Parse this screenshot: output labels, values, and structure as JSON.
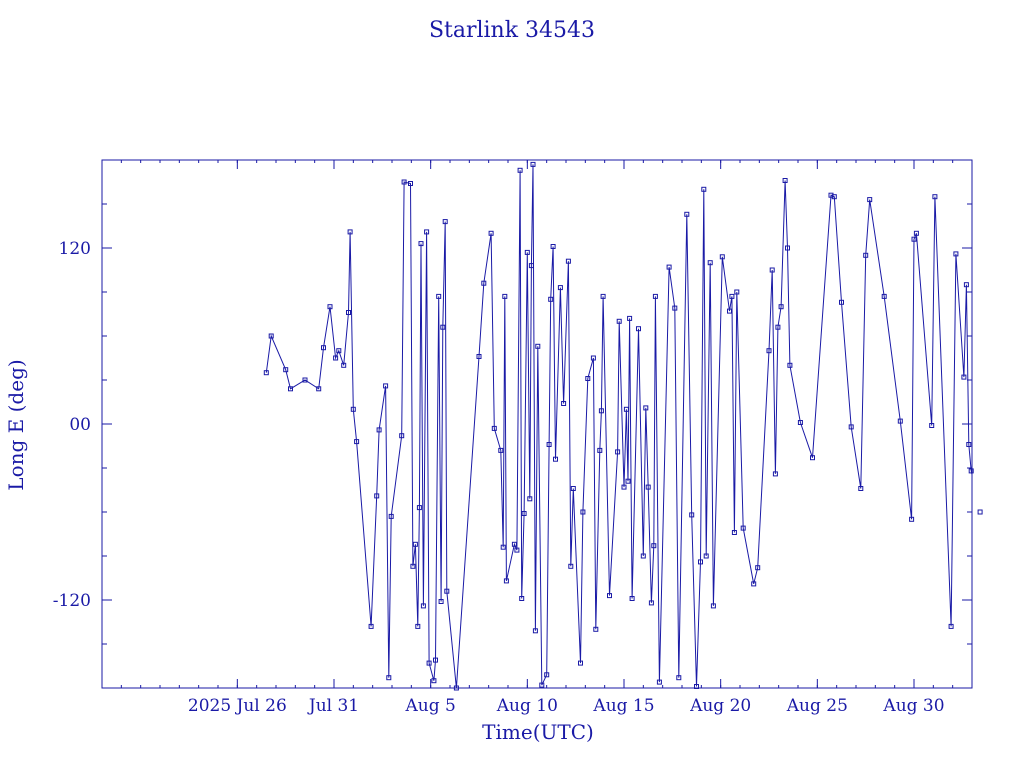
{
  "chart_data": {
    "type": "scatter",
    "title": "Starlink 34543",
    "xlabel": "Time(UTC)",
    "ylabel": "Long E (deg)",
    "x_tick_labels": [
      "2025 Jul 26",
      "Jul 31",
      "Aug  5",
      "Aug 10",
      "Aug 15",
      "Aug 20",
      "Aug 25",
      "Aug 30"
    ],
    "y_tick_labels": [
      "120",
      "00",
      "-120"
    ],
    "x_tick_dates": [
      "2025-07-26",
      "2025-07-31",
      "2025-08-05",
      "2025-08-10",
      "2025-08-15",
      "2025-08-20",
      "2025-08-25",
      "2025-08-30"
    ],
    "y_tick_values": [
      120,
      0,
      -120
    ],
    "xlim": [
      "2025-07-19",
      "2025-09-02"
    ],
    "ylim": [
      -180,
      180
    ],
    "grid": false,
    "color": "#1a1aa6",
    "series": [
      {
        "points": [
          [
            "2025-07-27T12:00",
            35
          ],
          [
            "2025-07-27T18:00",
            60
          ],
          [
            "2025-07-28T12:00",
            37
          ],
          [
            "2025-07-28T18:00",
            24
          ],
          [
            "2025-07-29T12:00",
            30
          ],
          [
            "2025-07-30T05:00",
            24
          ],
          [
            "2025-07-30T11:00",
            52
          ],
          [
            "2025-07-30T19:00",
            80
          ],
          [
            "2025-07-31T02:00",
            45
          ],
          [
            "2025-07-31T06:00",
            50
          ],
          [
            "2025-07-31T12:00",
            40
          ],
          [
            "2025-07-31T18:00",
            76
          ],
          [
            "2025-07-31T20:00",
            131
          ],
          [
            "2025-08-01T00:00",
            10
          ],
          [
            "2025-08-01T04:00",
            -12
          ],
          [
            "2025-08-01T22:00",
            -138
          ],
          [
            "2025-08-02T05:00",
            -49
          ],
          [
            "2025-08-02T08:00",
            -4
          ],
          [
            "2025-08-02T16:00",
            26
          ],
          [
            "2025-08-02T20:00",
            -173
          ],
          [
            "2025-08-02T23:00",
            -63
          ],
          [
            "2025-08-03T12:00",
            -8
          ],
          [
            "2025-08-03T15:00",
            165
          ],
          [
            "2025-08-03T23:00",
            164
          ],
          [
            "2025-08-04T02:00",
            -97
          ],
          [
            "2025-08-04T05:00",
            -82
          ],
          [
            "2025-08-04T08:00",
            -138
          ],
          [
            "2025-08-04T10:00",
            -57
          ],
          [
            "2025-08-04T12:00",
            123
          ],
          [
            "2025-08-04T15:00",
            -124
          ],
          [
            "2025-08-04T19:00",
            131
          ],
          [
            "2025-08-04T22:00",
            -163
          ],
          [
            "2025-08-05T04:00",
            -175
          ],
          [
            "2025-08-05T06:00",
            -161
          ],
          [
            "2025-08-05T10:00",
            87
          ],
          [
            "2025-08-05T13:00",
            -121
          ],
          [
            "2025-08-05T15:00",
            66
          ],
          [
            "2025-08-05T18:00",
            138
          ],
          [
            "2025-08-05T20:00",
            -114
          ],
          [
            "2025-08-06T08:00",
            -180
          ],
          [
            "2025-08-07T12:00",
            46
          ],
          [
            "2025-08-07T18:00",
            96
          ],
          [
            "2025-08-08T03:00",
            130
          ],
          [
            "2025-08-08T07:00",
            -3
          ],
          [
            "2025-08-08T15:00",
            -18
          ],
          [
            "2025-08-08T18:00",
            -84
          ],
          [
            "2025-08-08T20:00",
            87
          ],
          [
            "2025-08-08T22:00",
            -107
          ],
          [
            "2025-08-09T08:00",
            -82
          ],
          [
            "2025-08-09T11:00",
            -86
          ],
          [
            "2025-08-09T15:00",
            173
          ],
          [
            "2025-08-09T17:00",
            -119
          ],
          [
            "2025-08-09T20:00",
            -61
          ],
          [
            "2025-08-10T00:00",
            117
          ],
          [
            "2025-08-10T03:00",
            -51
          ],
          [
            "2025-08-10T05:00",
            108
          ],
          [
            "2025-08-10T07:00",
            177
          ],
          [
            "2025-08-10T10:00",
            -141
          ],
          [
            "2025-08-10T13:00",
            53
          ],
          [
            "2025-08-10T18:00",
            -178
          ],
          [
            "2025-08-11T00:00",
            -171
          ],
          [
            "2025-08-11T03:00",
            -14
          ],
          [
            "2025-08-11T05:00",
            85
          ],
          [
            "2025-08-11T08:00",
            121
          ],
          [
            "2025-08-11T11:00",
            -24
          ],
          [
            "2025-08-11T17:00",
            93
          ],
          [
            "2025-08-11T21:00",
            14
          ],
          [
            "2025-08-12T03:00",
            111
          ],
          [
            "2025-08-12T06:00",
            -97
          ],
          [
            "2025-08-12T09:00",
            -44
          ],
          [
            "2025-08-12T18:00",
            -163
          ],
          [
            "2025-08-12T21:00",
            -60
          ],
          [
            "2025-08-13T03:00",
            31
          ],
          [
            "2025-08-13T10:00",
            45
          ],
          [
            "2025-08-13T13:00",
            -140
          ],
          [
            "2025-08-13T18:00",
            -18
          ],
          [
            "2025-08-13T20:00",
            9
          ],
          [
            "2025-08-13T22:00",
            87
          ],
          [
            "2025-08-14T06:00",
            -117
          ],
          [
            "2025-08-14T16:00",
            -19
          ],
          [
            "2025-08-14T18:00",
            70
          ],
          [
            "2025-08-15T00:00",
            -43
          ],
          [
            "2025-08-15T03:00",
            10
          ],
          [
            "2025-08-15T05:00",
            -39
          ],
          [
            "2025-08-15T07:00",
            72
          ],
          [
            "2025-08-15T10:00",
            -119
          ],
          [
            "2025-08-15T18:00",
            65
          ],
          [
            "2025-08-16T00:00",
            -90
          ],
          [
            "2025-08-16T03:00",
            11
          ],
          [
            "2025-08-16T06:00",
            -43
          ],
          [
            "2025-08-16T10:00",
            -122
          ],
          [
            "2025-08-16T13:00",
            -83
          ],
          [
            "2025-08-16T15:00",
            87
          ],
          [
            "2025-08-16T20:00",
            -176
          ],
          [
            "2025-08-17T08:00",
            107
          ],
          [
            "2025-08-17T15:00",
            79
          ],
          [
            "2025-08-17T20:00",
            -173
          ],
          [
            "2025-08-18T06:00",
            143
          ],
          [
            "2025-08-18T12:00",
            -62
          ],
          [
            "2025-08-18T18:00",
            -179
          ],
          [
            "2025-08-18T23:00",
            -94
          ],
          [
            "2025-08-19T03:00",
            160
          ],
          [
            "2025-08-19T06:00",
            -90
          ],
          [
            "2025-08-19T11:00",
            110
          ],
          [
            "2025-08-19T15:00",
            -124
          ],
          [
            "2025-08-20T02:00",
            114
          ],
          [
            "2025-08-20T11:00",
            77
          ],
          [
            "2025-08-20T14:00",
            87
          ],
          [
            "2025-08-20T17:00",
            -74
          ],
          [
            "2025-08-20T20:00",
            90
          ],
          [
            "2025-08-21T04:00",
            -71
          ],
          [
            "2025-08-21T17:00",
            -109
          ],
          [
            "2025-08-21T22:00",
            -98
          ],
          [
            "2025-08-22T12:00",
            50
          ],
          [
            "2025-08-22T16:00",
            105
          ],
          [
            "2025-08-22T20:00",
            -34
          ],
          [
            "2025-08-22T23:00",
            66
          ],
          [
            "2025-08-23T03:00",
            80
          ],
          [
            "2025-08-23T08:00",
            166
          ],
          [
            "2025-08-23T11:00",
            120
          ],
          [
            "2025-08-23T14:00",
            40
          ],
          [
            "2025-08-24T03:00",
            1
          ],
          [
            "2025-08-24T18:00",
            -23
          ],
          [
            "2025-08-25T17:00",
            156
          ],
          [
            "2025-08-25T21:00",
            155
          ],
          [
            "2025-08-26T06:00",
            83
          ],
          [
            "2025-08-26T18:00",
            -2
          ],
          [
            "2025-08-27T06:00",
            -44
          ],
          [
            "2025-08-27T12:00",
            115
          ],
          [
            "2025-08-27T17:00",
            153
          ],
          [
            "2025-08-28T11:00",
            87
          ],
          [
            "2025-08-29T07:00",
            2
          ],
          [
            "2025-08-29T21:00",
            -65
          ],
          [
            "2025-08-30T00:00",
            126
          ],
          [
            "2025-08-30T03:00",
            130
          ],
          [
            "2025-08-30T22:00",
            -1
          ],
          [
            "2025-08-31T02:00",
            155
          ],
          [
            "2025-08-31T22:00",
            -138
          ],
          [
            "2025-09-01T04:00",
            116
          ],
          [
            "2025-09-01T14:00",
            32
          ],
          [
            "2025-09-01T17:00",
            95
          ],
          [
            "2025-09-01T20:00",
            -14
          ],
          [
            "2025-09-01T23:00",
            -32
          ],
          [
            "2025-09-02T10:00",
            -60
          ]
        ]
      }
    ]
  }
}
